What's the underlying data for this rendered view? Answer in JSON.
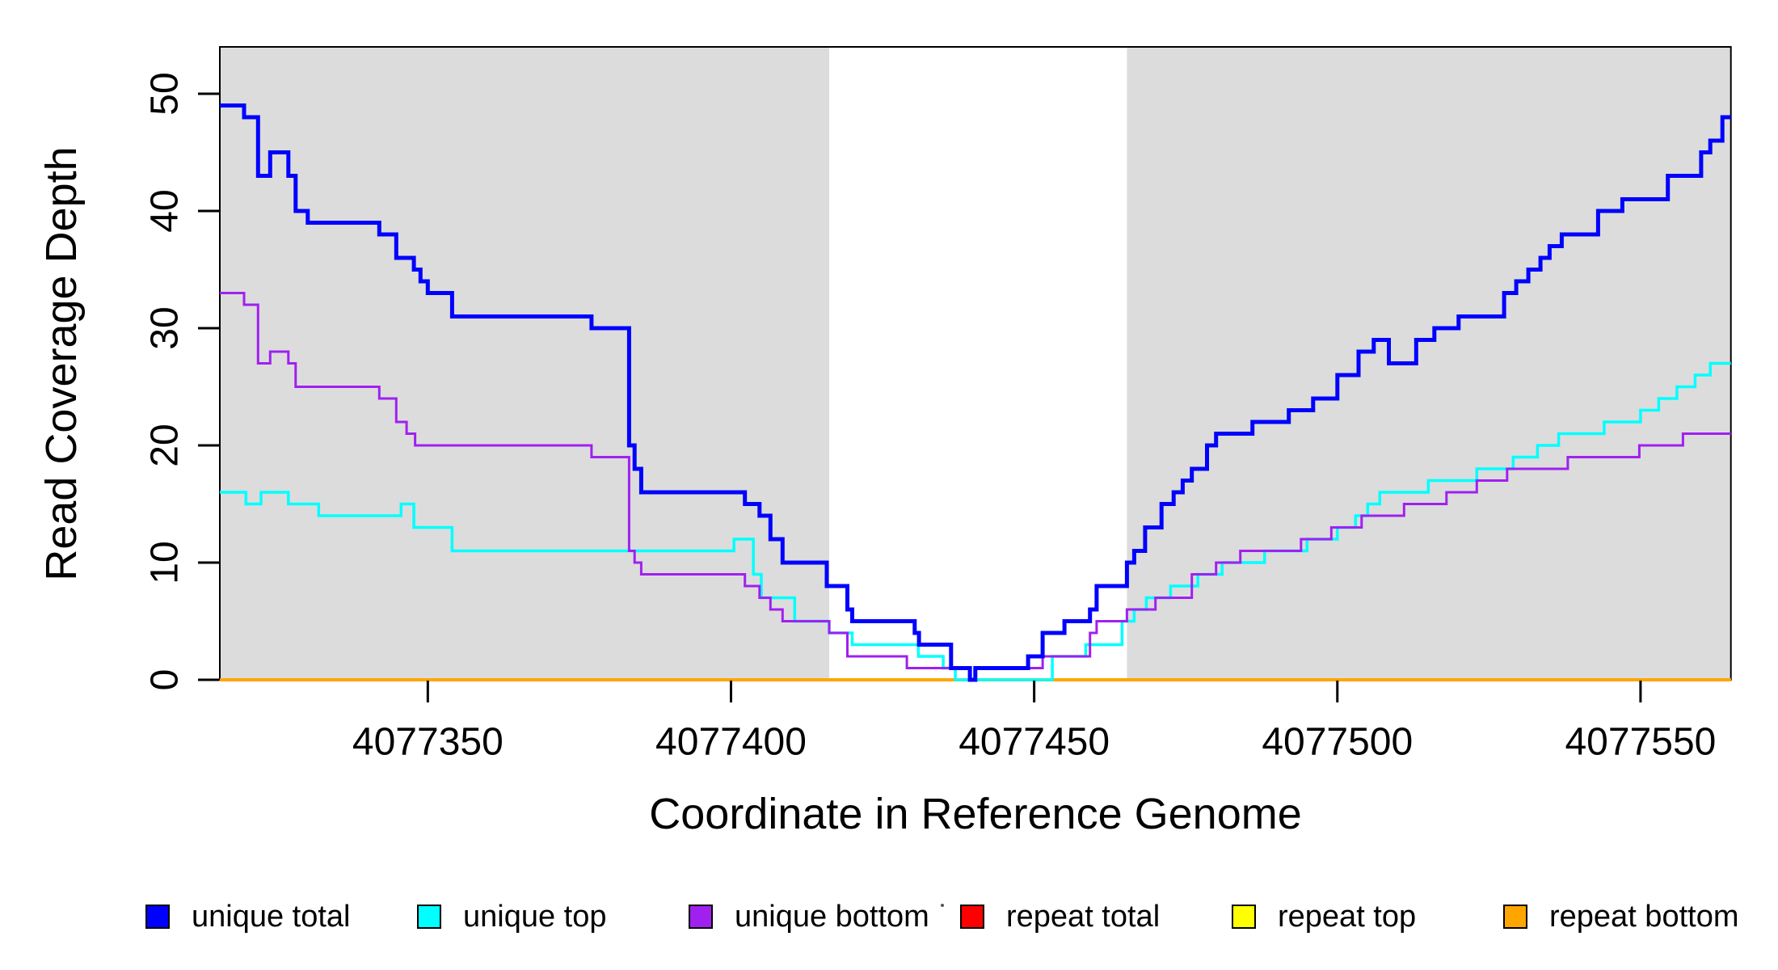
{
  "figure": {
    "background": "#ffffff"
  },
  "chart_data": {
    "type": "line",
    "subtype": "step",
    "title": "",
    "xlabel": "Coordinate in Reference Genome",
    "ylabel": "Read Coverage Depth",
    "xlim": [
      4077315.7,
      4077564.9
    ],
    "ylim": [
      0,
      54
    ],
    "xticks": [
      4077350,
      4077400,
      4077450,
      4077500,
      4077550
    ],
    "yticks": [
      0,
      10,
      20,
      30,
      40,
      50
    ],
    "grid": false,
    "plot_background": "#ffffff",
    "shaded_regions": [
      {
        "name": "left-gray-region",
        "x0": 4077315.7,
        "x1": 4077416.2,
        "color": "#DCDCDC"
      },
      {
        "name": "right-gray-region",
        "x0": 4077465.3,
        "x1": 4077564.9,
        "color": "#DCDCDC"
      }
    ],
    "series": [
      {
        "name": "repeat total",
        "color": "#FF0000",
        "line_width": 4,
        "points": [
          [
            4077315.7,
            0
          ],
          [
            4077564.9,
            0
          ]
        ]
      },
      {
        "name": "repeat top",
        "color": "#FFFF00",
        "line_width": 4,
        "points": [
          [
            4077315.7,
            0
          ],
          [
            4077564.9,
            0
          ]
        ]
      },
      {
        "name": "repeat bottom",
        "color": "#FFA500",
        "line_width": 4,
        "points": [
          [
            4077315.7,
            0
          ],
          [
            4077564.9,
            0
          ]
        ]
      },
      {
        "name": "unique top",
        "color": "#00FFFF",
        "line_width": 3.5,
        "points": [
          [
            4077315.7,
            16
          ],
          [
            4077320,
            15
          ],
          [
            4077322.5,
            16
          ],
          [
            4077327,
            15
          ],
          [
            4077332,
            14
          ],
          [
            4077345.6,
            15
          ],
          [
            4077347.7,
            13
          ],
          [
            4077354,
            11
          ],
          [
            4077400.5,
            12
          ],
          [
            4077403.7,
            9
          ],
          [
            4077405,
            7
          ],
          [
            4077410.5,
            5
          ],
          [
            4077416.2,
            4
          ],
          [
            4077420,
            3
          ],
          [
            4077430.9,
            2
          ],
          [
            4077435,
            1
          ],
          [
            4077437,
            0
          ],
          [
            4077453,
            2
          ],
          [
            4077458.5,
            3
          ],
          [
            4077464.5,
            5
          ],
          [
            4077466.5,
            6
          ],
          [
            4077468.5,
            7
          ],
          [
            4077472.5,
            8
          ],
          [
            4077477,
            9
          ],
          [
            4077481,
            10
          ],
          [
            4077488,
            11
          ],
          [
            4077495,
            12
          ],
          [
            4077500,
            13
          ],
          [
            4077503,
            14
          ],
          [
            4077505,
            15
          ],
          [
            4077507,
            16
          ],
          [
            4077515,
            17
          ],
          [
            4077523,
            18
          ],
          [
            4077529,
            19
          ],
          [
            4077533,
            20
          ],
          [
            4077536.5,
            21
          ],
          [
            4077544,
            22
          ],
          [
            4077550,
            23
          ],
          [
            4077553,
            24
          ],
          [
            4077556,
            25
          ],
          [
            4077559,
            26
          ],
          [
            4077561.5,
            27
          ]
        ]
      },
      {
        "name": "unique bottom",
        "color": "#A020F0",
        "line_width": 3,
        "points": [
          [
            4077315.7,
            33
          ],
          [
            4077319.7,
            32
          ],
          [
            4077322,
            27
          ],
          [
            4077324,
            28
          ],
          [
            4077327,
            27
          ],
          [
            4077328.2,
            25
          ],
          [
            4077342,
            24
          ],
          [
            4077344.8,
            22
          ],
          [
            4077346.5,
            21
          ],
          [
            4077347.9,
            20
          ],
          [
            4077377,
            19
          ],
          [
            4077383.2,
            11
          ],
          [
            4077384.1,
            10
          ],
          [
            4077385.2,
            9
          ],
          [
            4077402.3,
            8
          ],
          [
            4077404.7,
            7
          ],
          [
            4077406.5,
            6
          ],
          [
            4077408.5,
            5
          ],
          [
            4077416.2,
            4
          ],
          [
            4077419.2,
            2
          ],
          [
            4077429,
            1
          ],
          [
            4077439.4,
            0
          ],
          [
            4077440.3,
            1
          ],
          [
            4077451.4,
            2
          ],
          [
            4077459.2,
            4
          ],
          [
            4077460.3,
            5
          ],
          [
            4077465.3,
            6
          ],
          [
            4077470,
            7
          ],
          [
            4077476,
            9
          ],
          [
            4077480,
            10
          ],
          [
            4077484,
            11
          ],
          [
            4077494,
            12
          ],
          [
            4077499,
            13
          ],
          [
            4077504,
            14
          ],
          [
            4077511,
            15
          ],
          [
            4077518,
            16
          ],
          [
            4077523,
            17
          ],
          [
            4077528,
            18
          ],
          [
            4077538,
            19
          ],
          [
            4077549.8,
            20
          ],
          [
            4077557,
            21
          ]
        ]
      },
      {
        "name": "unique total",
        "color": "#0000FF",
        "line_width": 5,
        "points": [
          [
            4077315.7,
            49
          ],
          [
            4077319.7,
            48
          ],
          [
            4077322,
            43
          ],
          [
            4077324,
            45
          ],
          [
            4077327,
            43
          ],
          [
            4077328.2,
            40
          ],
          [
            4077330.2,
            39
          ],
          [
            4077342,
            38
          ],
          [
            4077344.8,
            36
          ],
          [
            4077347.7,
            35
          ],
          [
            4077348.8,
            34
          ],
          [
            4077350,
            33
          ],
          [
            4077354,
            31
          ],
          [
            4077377,
            30
          ],
          [
            4077383.2,
            20
          ],
          [
            4077384.1,
            18
          ],
          [
            4077385.2,
            16
          ],
          [
            4077402.3,
            15
          ],
          [
            4077404.7,
            14
          ],
          [
            4077406.5,
            12
          ],
          [
            4077408.5,
            10
          ],
          [
            4077415.8,
            8
          ],
          [
            4077419.2,
            6
          ],
          [
            4077420,
            5
          ],
          [
            4077430.3,
            4
          ],
          [
            4077431,
            3
          ],
          [
            4077436.3,
            1
          ],
          [
            4077439.4,
            0
          ],
          [
            4077440.3,
            1
          ],
          [
            4077449,
            2
          ],
          [
            4077451.4,
            4
          ],
          [
            4077455,
            5
          ],
          [
            4077459.2,
            6
          ],
          [
            4077460.3,
            8
          ],
          [
            4077465.3,
            10
          ],
          [
            4077466.5,
            11
          ],
          [
            4077468.3,
            13
          ],
          [
            4077471,
            15
          ],
          [
            4077473,
            16
          ],
          [
            4077474.5,
            17
          ],
          [
            4077476,
            18
          ],
          [
            4077478.5,
            20
          ],
          [
            4077480,
            21
          ],
          [
            4077486,
            22
          ],
          [
            4077492,
            23
          ],
          [
            4077496,
            24
          ],
          [
            4077500,
            26
          ],
          [
            4077503.5,
            28
          ],
          [
            4077506,
            29
          ],
          [
            4077508.5,
            27
          ],
          [
            4077513,
            29
          ],
          [
            4077516,
            30
          ],
          [
            4077520,
            31
          ],
          [
            4077527.5,
            33
          ],
          [
            4077529.5,
            34
          ],
          [
            4077531.5,
            35
          ],
          [
            4077533.5,
            36
          ],
          [
            4077535,
            37
          ],
          [
            4077537,
            38
          ],
          [
            4077543,
            40
          ],
          [
            4077547,
            41
          ],
          [
            4077554.5,
            43
          ],
          [
            4077560,
            45
          ],
          [
            4077561.5,
            46
          ],
          [
            4077563.5,
            48
          ]
        ]
      }
    ],
    "legend": {
      "position": "bottom-horizontal",
      "entries": [
        {
          "label": "unique total",
          "color": "#0000FF"
        },
        {
          "label": "unique top",
          "color": "#00FFFF"
        },
        {
          "label": "unique bottom",
          "color": "#A020F0"
        },
        {
          "label": "repeat total",
          "color": "#FF0000"
        },
        {
          "label": "repeat top",
          "color": "#FFFF00"
        },
        {
          "label": "repeat bottom",
          "color": "#FFA500"
        }
      ]
    }
  }
}
